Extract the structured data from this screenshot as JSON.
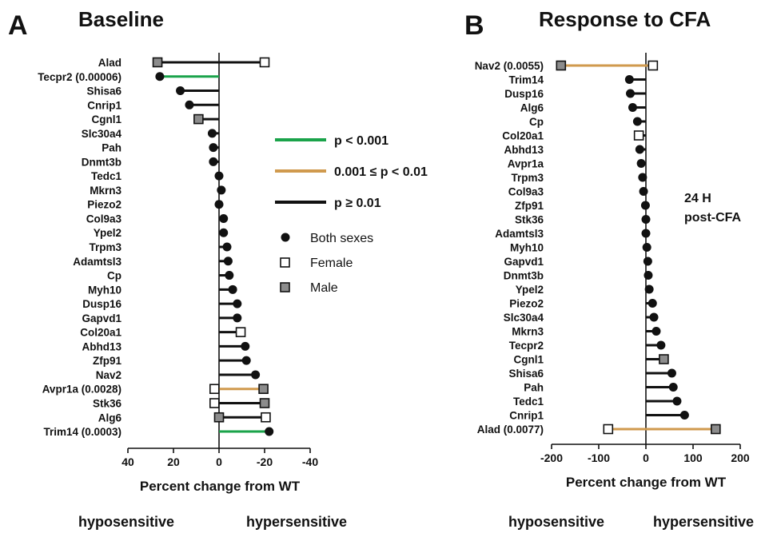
{
  "chart_data": [
    {
      "type": "dot-range",
      "panel_letter": "A",
      "title": "Baseline",
      "xlabel": "Percent change from WT",
      "xlim": [
        40,
        -40
      ],
      "xticks": [
        "40",
        "20",
        "0",
        "-20",
        "-40"
      ],
      "footer_left": "hyposensitive",
      "footer_right": "hypersensitive",
      "rows": [
        {
          "label": "Alad",
          "female": -20,
          "male": 27,
          "p": "ns"
        },
        {
          "label": "Tecpr2 (0.00006)",
          "both": 26,
          "p": "lt001"
        },
        {
          "label": "Shisa6",
          "both": 17,
          "p": "ns"
        },
        {
          "label": "Cnrip1",
          "both": 13,
          "p": "ns"
        },
        {
          "label": "Cgnl1",
          "male": 9,
          "p": "ns"
        },
        {
          "label": "Slc30a4",
          "both": 3,
          "p": "ns"
        },
        {
          "label": "Pah",
          "both": 2.5,
          "p": "ns"
        },
        {
          "label": "Dnmt3b",
          "both": 2.5,
          "p": "ns"
        },
        {
          "label": "Tedc1",
          "both": 0,
          "p": "ns"
        },
        {
          "label": "Mkrn3",
          "both": -1,
          "p": "ns"
        },
        {
          "label": "Piezo2",
          "both": 0,
          "p": "ns"
        },
        {
          "label": "Col9a3",
          "both": -2,
          "p": "ns"
        },
        {
          "label": "Ypel2",
          "both": -2,
          "p": "ns"
        },
        {
          "label": "Trpm3",
          "both": -3.5,
          "p": "ns"
        },
        {
          "label": "Adamtsl3",
          "both": -4,
          "p": "ns"
        },
        {
          "label": "Cp",
          "both": -4.5,
          "p": "ns"
        },
        {
          "label": "Myh10",
          "both": -6,
          "p": "ns"
        },
        {
          "label": "Dusp16",
          "both": -8,
          "p": "ns"
        },
        {
          "label": "Gapvd1",
          "both": -8,
          "p": "ns"
        },
        {
          "label": "Col20a1",
          "female": -9.5,
          "p": "ns"
        },
        {
          "label": "Abhd13",
          "both": -11.5,
          "p": "ns"
        },
        {
          "label": "Zfp91",
          "both": -12,
          "p": "ns"
        },
        {
          "label": "Nav2",
          "both": -16,
          "p": "ns"
        },
        {
          "label": "Avpr1a (0.0028)",
          "female": 2,
          "male": -19.5,
          "p": "p001_01"
        },
        {
          "label": "Stk36",
          "female": 2,
          "male": -20,
          "p": "ns"
        },
        {
          "label": "Alg6",
          "female": -20.5,
          "male": 0,
          "p": "ns"
        },
        {
          "label": "Trim14 (0.0003)",
          "both": -22,
          "p": "lt001"
        }
      ]
    },
    {
      "type": "dot-range",
      "panel_letter": "B",
      "title": "Response to CFA",
      "xlabel": "Percent change from WT",
      "xlim": [
        -200,
        200
      ],
      "xticks": [
        "-200",
        "-100",
        "0",
        "100",
        "200"
      ],
      "footer_left": "hyposensitive",
      "footer_right": "hypersensitive",
      "annotation_line1": "24 H",
      "annotation_line2": "post-CFA",
      "rows": [
        {
          "label": "Nav2 (0.0055)",
          "female": 15,
          "male": -180,
          "p": "p001_01"
        },
        {
          "label": "Trim14",
          "both": -35,
          "p": "ns"
        },
        {
          "label": "Dusp16",
          "both": -33,
          "p": "ns"
        },
        {
          "label": "Alg6",
          "both": -28,
          "p": "ns"
        },
        {
          "label": "Cp",
          "both": -18,
          "p": "ns"
        },
        {
          "label": "Col20a1",
          "female": -15,
          "p": "ns"
        },
        {
          "label": "Abhd13",
          "both": -13,
          "p": "ns"
        },
        {
          "label": "Avpr1a",
          "both": -10,
          "p": "ns"
        },
        {
          "label": "Trpm3",
          "both": -7,
          "p": "ns"
        },
        {
          "label": "Col9a3",
          "both": -5,
          "p": "ns"
        },
        {
          "label": "Zfp91",
          "both": -1,
          "p": "ns"
        },
        {
          "label": "Stk36",
          "both": 0,
          "p": "ns"
        },
        {
          "label": "Adamtsl3",
          "both": 0,
          "p": "ns"
        },
        {
          "label": "Myh10",
          "both": 2,
          "p": "ns"
        },
        {
          "label": "Gapvd1",
          "both": 4,
          "p": "ns"
        },
        {
          "label": "Dnmt3b",
          "both": 5,
          "p": "ns"
        },
        {
          "label": "Ypel2",
          "both": 7,
          "p": "ns"
        },
        {
          "label": "Piezo2",
          "both": 14,
          "p": "ns"
        },
        {
          "label": "Slc30a4",
          "both": 17,
          "p": "ns"
        },
        {
          "label": "Mkrn3",
          "both": 22,
          "p": "ns"
        },
        {
          "label": "Tecpr2",
          "both": 32,
          "p": "ns"
        },
        {
          "label": "Cgnl1",
          "male": 38,
          "p": "ns"
        },
        {
          "label": "Shisa6",
          "both": 55,
          "p": "ns"
        },
        {
          "label": "Pah",
          "both": 58,
          "p": "ns"
        },
        {
          "label": "Tedc1",
          "both": 66,
          "p": "ns"
        },
        {
          "label": "Cnrip1",
          "both": 82,
          "p": "ns"
        },
        {
          "label": "Alad (0.0077)",
          "female": -80,
          "male": 148,
          "p": "p001_01"
        }
      ]
    }
  ],
  "legend": {
    "lines": [
      {
        "key": "lt001",
        "label": "p < 0.001"
      },
      {
        "key": "p001_01",
        "label": "0.001 ≤ p < 0.01"
      },
      {
        "key": "ns",
        "label": "p ≥ 0.01"
      }
    ],
    "markers": [
      {
        "key": "both",
        "label": "Both sexes"
      },
      {
        "key": "female",
        "label": "Female"
      },
      {
        "key": "male",
        "label": "Male"
      }
    ]
  },
  "colors": {
    "lt001": "#1aa34a",
    "p001_01": "#d09a4e",
    "ns": "#111111",
    "both_fill": "#111111",
    "female_fill": "#ffffff",
    "male_fill": "#8c8c8c",
    "axis": "#111111"
  }
}
